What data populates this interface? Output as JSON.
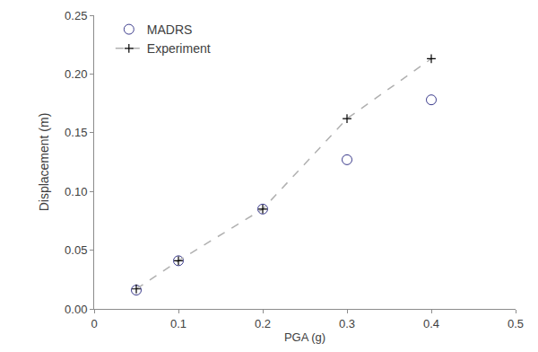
{
  "chart_data": {
    "type": "scatter",
    "x_label": "PGA (g)",
    "y_label": "Displacement (m)",
    "series": [
      {
        "name": "MADRS",
        "type": "scatter",
        "color": "#3b3b8c",
        "marker": "circle-open",
        "x": [
          0.05,
          0.1,
          0.2,
          0.3,
          0.4
        ],
        "values": [
          0.016,
          0.041,
          0.085,
          0.127,
          0.178
        ]
      },
      {
        "name": "Experiment",
        "type": "line",
        "color": "#000000",
        "marker": "cross",
        "line_style": "dash",
        "x": [
          0.05,
          0.1,
          0.2,
          0.3,
          0.4
        ],
        "values": [
          0.017,
          0.041,
          0.085,
          0.162,
          0.213
        ]
      }
    ],
    "xlim": [
      0,
      0.5
    ],
    "xticks": [
      0,
      0.1,
      0.2,
      0.3,
      0.4,
      0.5
    ],
    "ylim": [
      0,
      0.25
    ],
    "yticks": [
      {
        "value": 0,
        "label": "0.00"
      },
      {
        "value": 0.05,
        "label": "0.05"
      },
      {
        "value": 0.1,
        "label": "0.10"
      },
      {
        "value": 0.15,
        "label": "0.15"
      },
      {
        "value": 0.2,
        "label": "0.20"
      },
      {
        "value": 0.25,
        "label": "0.25"
      }
    ],
    "grid": false,
    "legend": "top-left"
  }
}
